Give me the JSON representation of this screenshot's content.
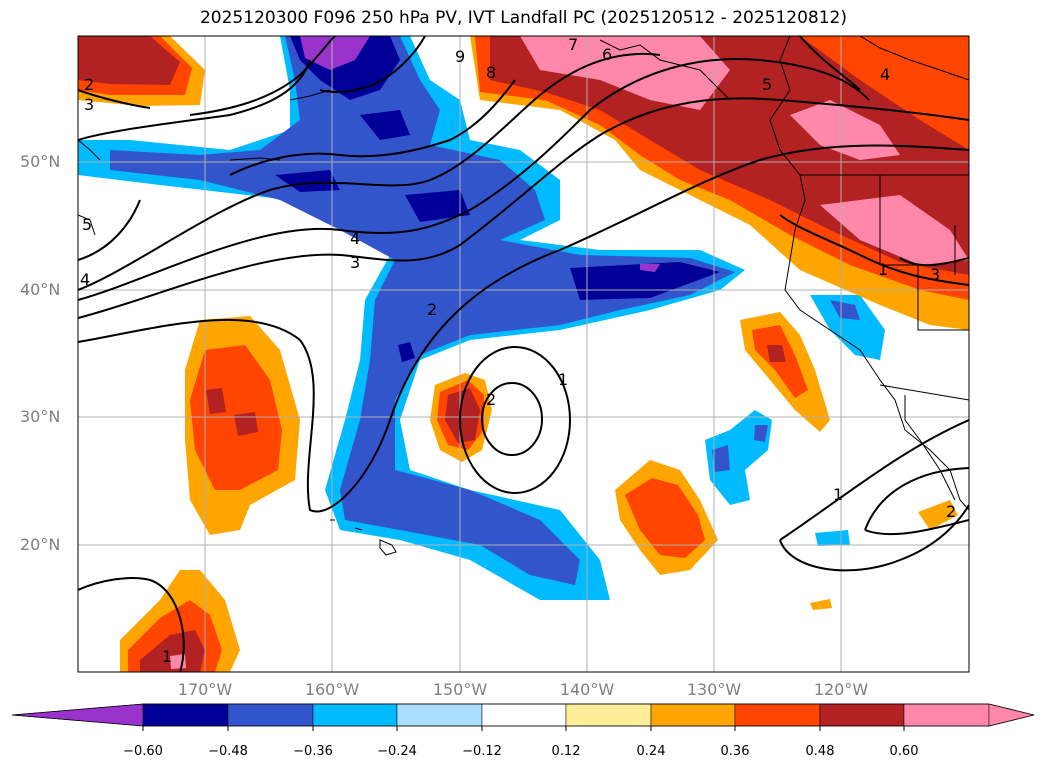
{
  "title": "2025120300 F096 250 hPa PV, IVT Landfall PC (2025120512 - 2025120812)",
  "latitude_labels": [
    "50°N",
    "40°N",
    "30°N",
    "20°N"
  ],
  "longitude_labels": [
    "170°W",
    "160°W",
    "150°W",
    "140°W",
    "130°W",
    "120°W"
  ],
  "contour_labels": [
    "2",
    "3",
    "4",
    "5",
    "6",
    "7",
    "8",
    "9",
    "4",
    "3",
    "2",
    "1",
    "2",
    "1",
    "1",
    "2",
    "1",
    "5",
    "4",
    "3"
  ],
  "colorbar": {
    "tick_labels": [
      "−0.60",
      "−0.48",
      "−0.36",
      "−0.24",
      "−0.12",
      "0.12",
      "0.24",
      "0.36",
      "0.48",
      "0.60"
    ],
    "colors": [
      "#9933cc",
      "#000099",
      "#3355cc",
      "#00bbff",
      "#aaddff",
      "#ffffff",
      "#ffee99",
      "#ffa500",
      "#ff4500",
      "#b22222",
      "#ff88aa",
      "#ff88aa"
    ]
  }
}
